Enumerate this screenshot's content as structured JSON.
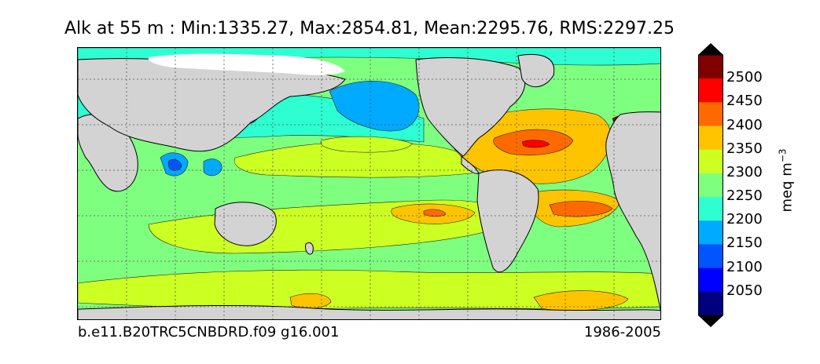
{
  "title": "Alk at 55 m : Min:1335.27, Max:2854.81, Mean:2295.76, RMS:2297.25",
  "caption_left": "b.e11.B20TRC5CNBDRD.f09 g16.001",
  "caption_right": "1986-2005",
  "units": {
    "base": "meq m",
    "exponent": "−3"
  },
  "colorbar": {
    "labels": [
      "2500",
      "2450",
      "2400",
      "2350",
      "2300",
      "2250",
      "2200",
      "2150",
      "2100",
      "2050"
    ],
    "colors_top_to_bottom": [
      "#800000",
      "#ff0000",
      "#ff6a00",
      "#ffc400",
      "#ccff22",
      "#7fff7f",
      "#2dffd2",
      "#00aaff",
      "#0055ff",
      "#0000ff",
      "#00007f"
    ],
    "extend": "both"
  },
  "colors": {
    "land": "#d3d3d3",
    "grid": "#555555"
  }
}
